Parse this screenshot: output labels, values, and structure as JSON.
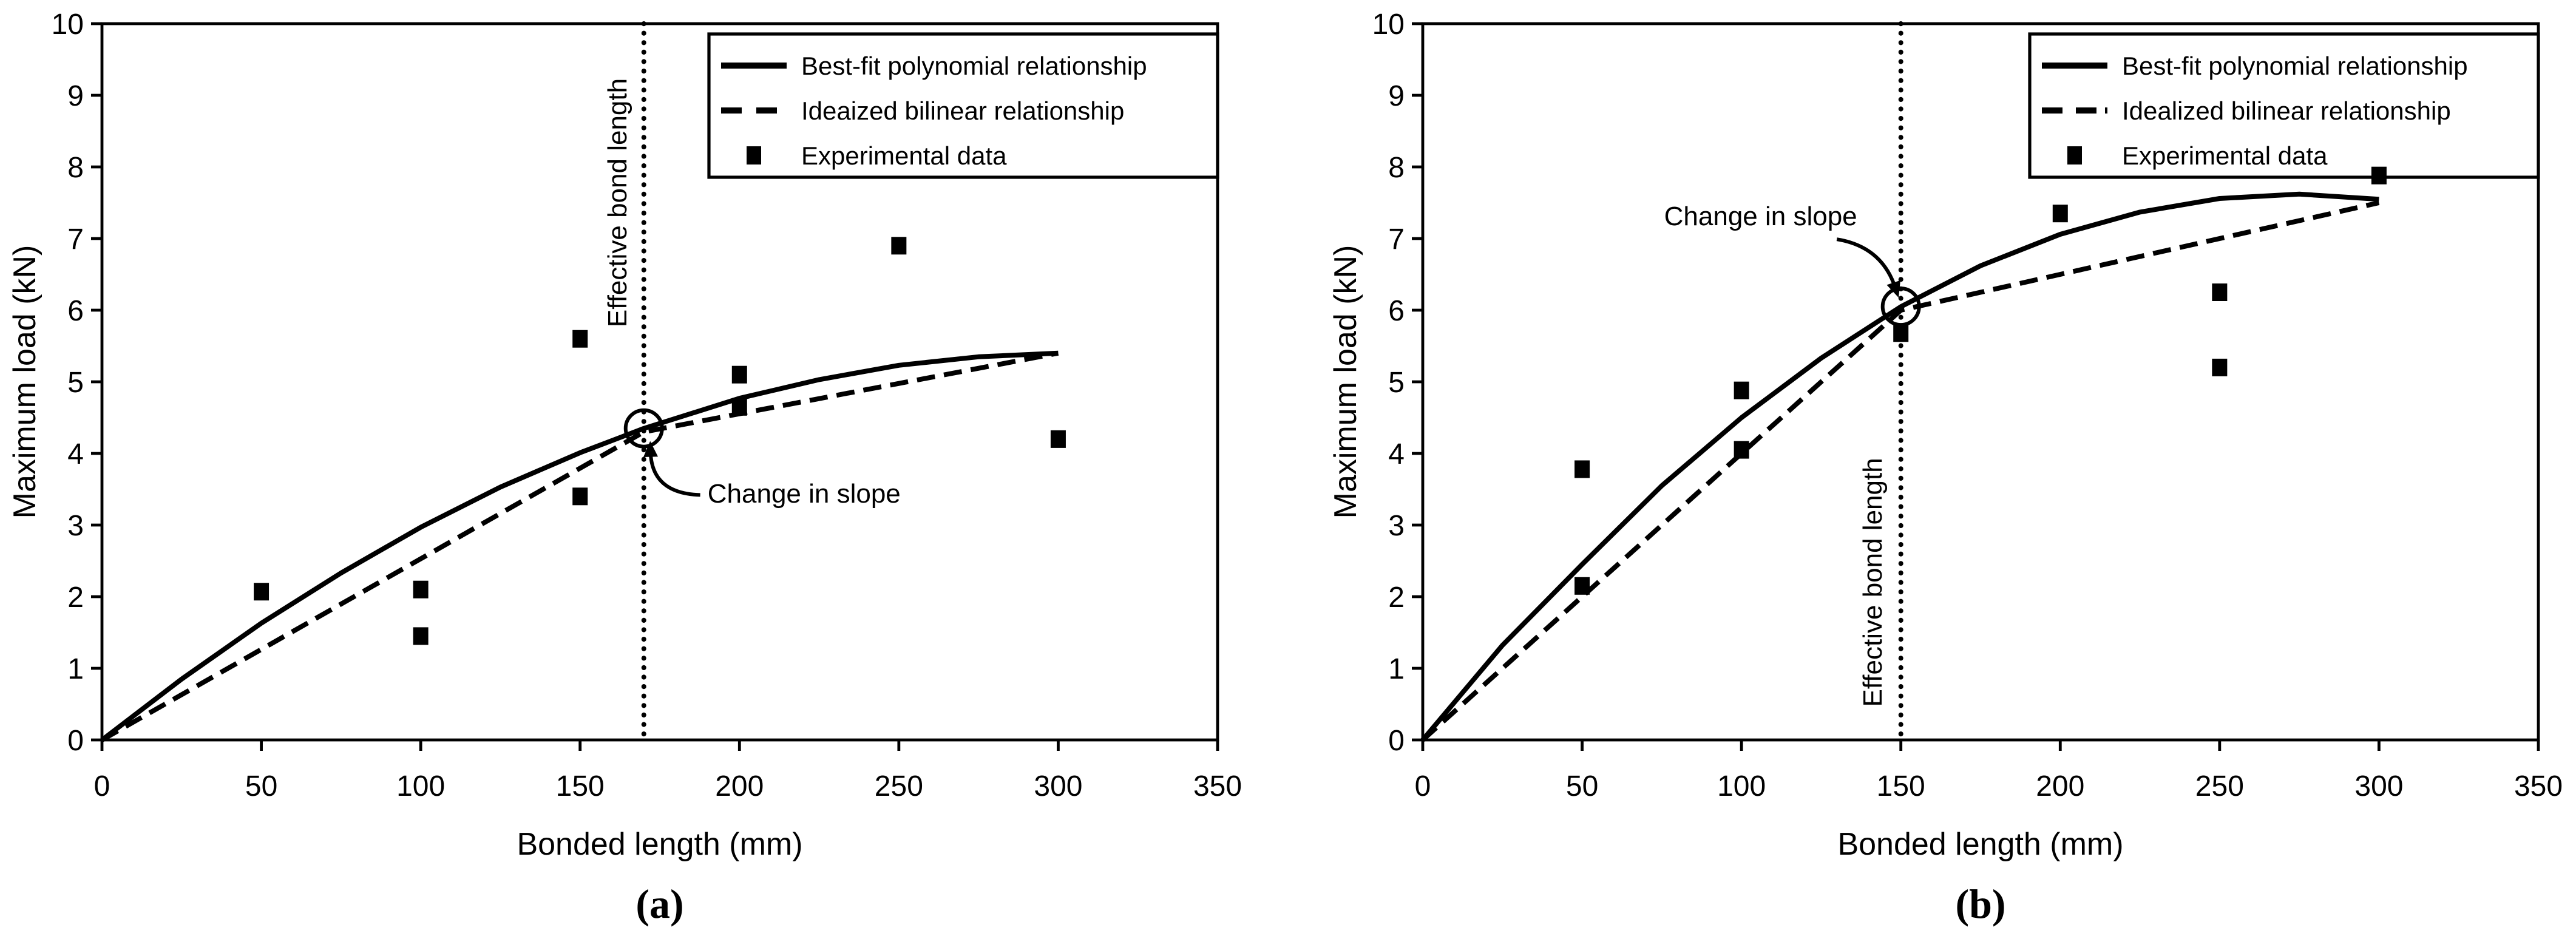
{
  "page": {
    "background": "#ffffff",
    "ink": "#000000"
  },
  "chart_data": [
    {
      "type": "line",
      "panel": "a",
      "caption": "(a)",
      "title": "",
      "xlabel": "Bonded length (mm)",
      "ylabel": "Maximum load (kN)",
      "xlim": [
        0,
        350
      ],
      "ylim": [
        0,
        10
      ],
      "xticks": [
        0,
        50,
        100,
        150,
        200,
        250,
        300,
        350
      ],
      "yticks": [
        0,
        1,
        2,
        3,
        4,
        5,
        6,
        7,
        8,
        9,
        10
      ],
      "grid": false,
      "legend_position": "top-right",
      "series": [
        {
          "name": "Best-fit polynomial relationship",
          "kind": "line",
          "line_style": "solid",
          "points": [
            [
              0,
              0
            ],
            [
              25,
              0.85
            ],
            [
              50,
              1.63
            ],
            [
              75,
              2.33
            ],
            [
              100,
              2.97
            ],
            [
              125,
              3.53
            ],
            [
              150,
              4.01
            ],
            [
              170,
              4.35
            ],
            [
              200,
              4.77
            ],
            [
              225,
              5.03
            ],
            [
              250,
              5.23
            ],
            [
              275,
              5.35
            ],
            [
              300,
              5.4
            ]
          ]
        },
        {
          "name": "Ideaized bilinear relationship",
          "kind": "line",
          "line_style": "dashed",
          "points": [
            [
              0,
              0
            ],
            [
              170,
              4.3
            ],
            [
              300,
              5.4
            ]
          ]
        },
        {
          "name": "Experimental data",
          "kind": "scatter",
          "marker": "filled-square",
          "points": [
            [
              50,
              2.07
            ],
            [
              100,
              2.1
            ],
            [
              100,
              1.45
            ],
            [
              150,
              5.6
            ],
            [
              150,
              3.4
            ],
            [
              200,
              5.1
            ],
            [
              200,
              4.65
            ],
            [
              250,
              6.9
            ],
            [
              300,
              4.2
            ]
          ]
        }
      ],
      "annotations": {
        "effective_bond_length": {
          "text": "Effective bond length",
          "line_x": 170,
          "label_x": 164.5,
          "label_y": 7.5
        },
        "change_in_slope": {
          "text": "Change in slope",
          "circle": [
            170,
            4.35
          ],
          "label_x": 190,
          "label_y": 3.45,
          "label_anchor": "start",
          "arrow_start": [
            187.7,
            3.42
          ],
          "arrow_ctrl": [
            172.5,
            3.44
          ],
          "arrow_end": [
            172.1,
            4.02
          ]
        }
      },
      "layout": {
        "plot": [
          84,
          19.5,
          1003,
          609.5
        ],
        "legend_box": [
          584,
          28,
          419,
          118
        ],
        "legend_dash_sample": "17 12 17 99",
        "x_title_baseline": 704,
        "caption_baseline": 756
      }
    },
    {
      "type": "line",
      "panel": "b",
      "caption": "(b)",
      "title": "",
      "xlabel": "Bonded length (mm)",
      "ylabel": "Maximum load (kN)",
      "xlim": [
        0,
        350
      ],
      "ylim": [
        0,
        10
      ],
      "xticks": [
        0,
        50,
        100,
        150,
        200,
        250,
        300,
        350
      ],
      "yticks": [
        0,
        1,
        2,
        3,
        4,
        5,
        6,
        7,
        8,
        9,
        10
      ],
      "grid": false,
      "legend_position": "top-right",
      "series": [
        {
          "name": "Best-fit polynomial relationship",
          "kind": "line",
          "line_style": "solid",
          "points": [
            [
              0,
              0
            ],
            [
              25,
              1.32
            ],
            [
              50,
              2.45
            ],
            [
              75,
              3.55
            ],
            [
              100,
              4.5
            ],
            [
              125,
              5.33
            ],
            [
              150,
              6.05
            ],
            [
              175,
              6.62
            ],
            [
              200,
              7.06
            ],
            [
              225,
              7.37
            ],
            [
              250,
              7.56
            ],
            [
              275,
              7.62
            ],
            [
              300,
              7.55
            ]
          ]
        },
        {
          "name": "Idealized bilinear relationship",
          "kind": "line",
          "line_style": "dashed",
          "points": [
            [
              0,
              0
            ],
            [
              150,
              6.0
            ],
            [
              300,
              7.5
            ]
          ]
        },
        {
          "name": "Experimental data",
          "kind": "scatter",
          "marker": "filled-square",
          "points": [
            [
              50,
              3.78
            ],
            [
              50,
              2.15
            ],
            [
              100,
              4.88
            ],
            [
              100,
              4.05
            ],
            [
              150,
              5.68
            ],
            [
              200,
              7.35
            ],
            [
              250,
              6.25
            ],
            [
              250,
              5.2
            ],
            [
              300,
              7.88
            ]
          ]
        }
      ],
      "annotations": {
        "effective_bond_length": {
          "text": "Effective bond length",
          "line_x": 150,
          "label_x": 144,
          "label_y": 2.2
        },
        "change_in_slope": {
          "text": "Change in slope",
          "circle": [
            150,
            6.05
          ],
          "label_x": 106,
          "label_y": 7.32,
          "label_anchor": "middle",
          "arrow_start": [
            129.9,
            6.99
          ],
          "arrow_ctrl": [
            143.9,
            6.89
          ],
          "arrow_end": [
            148.2,
            6.32
          ]
        }
      },
      "layout": {
        "plot": [
          111,
          19.5,
          1030,
          609.5
        ],
        "legend_box": [
          611,
          28,
          419,
          118
        ],
        "legend_dash_sample": "17 11 17 7 3 99",
        "x_title_baseline": 704,
        "caption_baseline": 756
      }
    }
  ]
}
